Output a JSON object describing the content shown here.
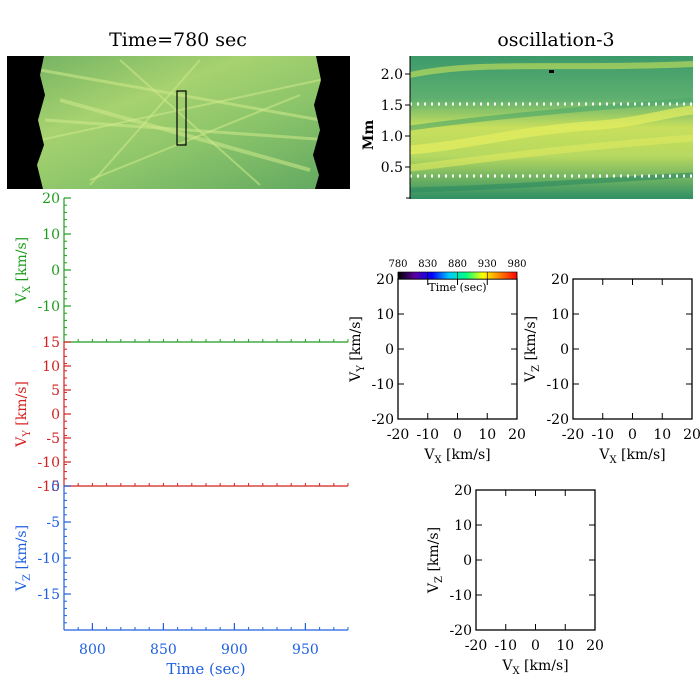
{
  "left_image": {
    "title": "Time=780 sec"
  },
  "right_image": {
    "title": "oscillation-3",
    "ylabel": "Mm",
    "yticks": [
      "2.0",
      "1.5",
      "1.0",
      "0.5"
    ]
  },
  "colors": {
    "vx": "#1e9c1e",
    "vy": "#d42020",
    "vz": "#2060e0",
    "axis": "#000000",
    "mask": "#000000"
  },
  "chart_data": [
    {
      "type": "line",
      "name": "vx-time",
      "ylabel_main": "V",
      "ylabel_sub": "X",
      "ylabel_unit": " [km/s]",
      "ylim": [
        -20,
        20
      ],
      "yticks": [
        "20",
        "10",
        "0",
        "-10"
      ],
      "xlim": [
        780,
        980
      ],
      "x": [],
      "y": []
    },
    {
      "type": "line",
      "name": "vy-time",
      "ylabel_main": "V",
      "ylabel_sub": "Y",
      "ylabel_unit": " [km/s]",
      "ylim": [
        -15,
        15
      ],
      "yticks": [
        "15",
        "10",
        "5",
        "0",
        "-5",
        "-10",
        "-15"
      ],
      "xlim": [
        780,
        980
      ],
      "x": [],
      "y": []
    },
    {
      "type": "line",
      "name": "vz-time",
      "ylabel_main": "V",
      "ylabel_sub": "Z",
      "ylabel_unit": " [km/s]",
      "xlabel": "Time (sec)",
      "ylim": [
        -20,
        0
      ],
      "yticks": [
        "0",
        "-5",
        "-10",
        "-15"
      ],
      "xlim": [
        780,
        980
      ],
      "xticks": [
        "800",
        "850",
        "900",
        "950"
      ],
      "x": [],
      "y": []
    },
    {
      "type": "scatter",
      "name": "vx-vy",
      "xlabel_main": "V",
      "xlabel_sub": "X",
      "xlabel_unit": " [km/s]",
      "ylabel_main": "V",
      "ylabel_sub": "Y",
      "ylabel_unit": " [km/s]",
      "xlim": [
        -20,
        20
      ],
      "ylim": [
        -20,
        20
      ],
      "xticks": [
        "-20",
        "-10",
        "0",
        "10",
        "20"
      ],
      "yticks": [
        "20",
        "10",
        "0",
        "-10",
        "-20"
      ],
      "colorbar": {
        "ticks": [
          "780",
          "830",
          "880",
          "930",
          "980"
        ],
        "label": "Time (sec)",
        "colors": [
          "#000000",
          "#5a00a0",
          "#0000ff",
          "#00c8ff",
          "#00ff80",
          "#ffff00",
          "#ff8000",
          "#ff0000"
        ]
      },
      "x": [],
      "y": []
    },
    {
      "type": "scatter",
      "name": "vx-vz-upper",
      "xlabel_main": "V",
      "xlabel_sub": "X",
      "xlabel_unit": " [km/s]",
      "ylabel_main": "V",
      "ylabel_sub": "Z",
      "ylabel_unit": " [km/s]",
      "xlim": [
        -20,
        20
      ],
      "ylim": [
        -20,
        20
      ],
      "xticks": [
        "-20",
        "-10",
        "0",
        "10",
        "20"
      ],
      "yticks": [
        "20",
        "10",
        "0",
        "-10",
        "-20"
      ],
      "x": [],
      "y": []
    },
    {
      "type": "scatter",
      "name": "vx-vz-lower",
      "xlabel_main": "V",
      "xlabel_sub": "X",
      "xlabel_unit": " [km/s]",
      "ylabel_main": "V",
      "ylabel_sub": "Z",
      "ylabel_unit": " [km/s]",
      "xlim": [
        -20,
        20
      ],
      "ylim": [
        -20,
        20
      ],
      "xticks": [
        "-20",
        "-10",
        "0",
        "10",
        "20"
      ],
      "yticks": [
        "20",
        "10",
        "0",
        "-10",
        "-20"
      ],
      "x": [],
      "y": []
    }
  ]
}
